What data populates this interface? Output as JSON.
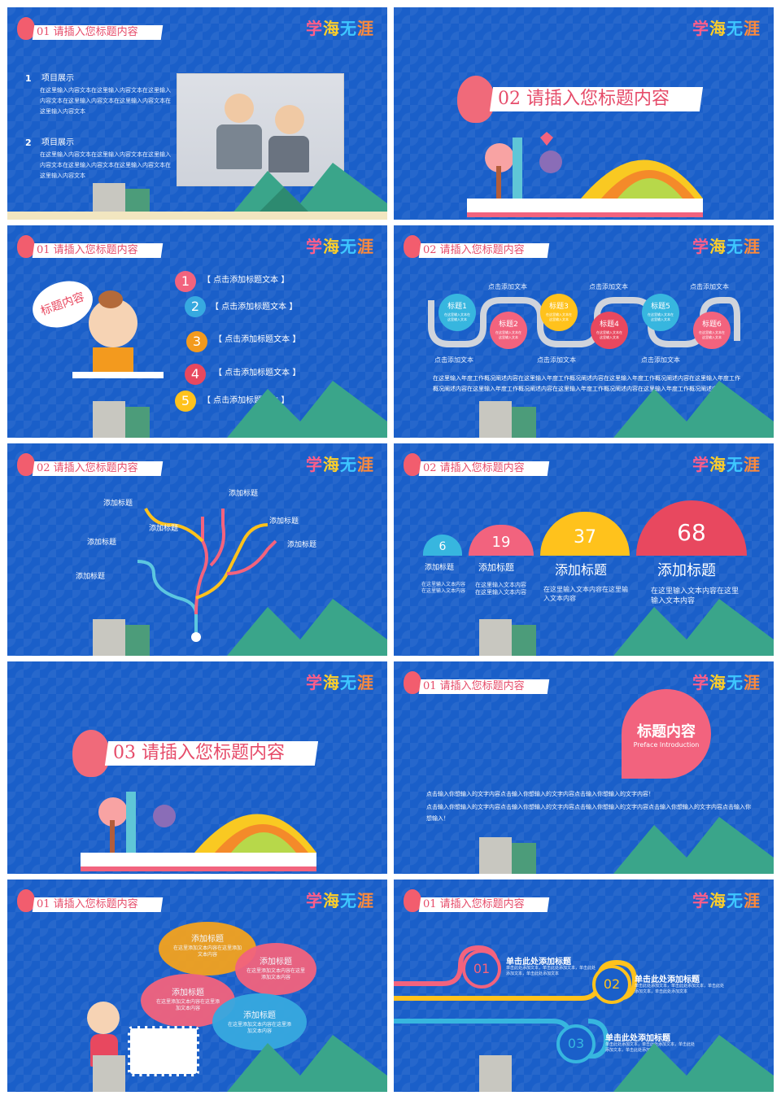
{
  "logo": {
    "chars": [
      "学",
      "海",
      "无",
      "涯"
    ]
  },
  "titles": {
    "s01": "01 请插入您标题内容",
    "s02": "02 请插入您标题内容",
    "s03": "03 请插入您标题内容"
  },
  "slide1": {
    "items": [
      {
        "num": "1",
        "heading": "项目展示",
        "body": "在这里输入内容文本在这里输入内容文本在这里输入内容文本在这里输入内容文本在这里输入内容文本在这里输入内容文本"
      },
      {
        "num": "2",
        "heading": "项目展示",
        "body": "在这里输入内容文本在这里输入内容文本在这里输入内容文本在这里输入内容文本在这里输入内容文本在这里输入内容文本"
      }
    ]
  },
  "slide3": {
    "bubble": "标题内容",
    "items": [
      {
        "num": "1",
        "label": "【 点击添加标题文本 】",
        "color": "#f2637e"
      },
      {
        "num": "2",
        "label": "【 点击添加标题文本 】",
        "color": "#37a9e0"
      },
      {
        "num": "3",
        "label": "【 点击添加标题文本 】",
        "color": "#f39a1e"
      },
      {
        "num": "4",
        "label": "【 点击添加标题文本 】",
        "color": "#e8485f"
      },
      {
        "num": "5",
        "label": "【 点击添加标题文本 】",
        "color": "#ffc21c"
      }
    ]
  },
  "slide4": {
    "top_labels": [
      "点击添加文本",
      "点击添加文本",
      "点击添加文本"
    ],
    "bottom_labels": [
      "点击添加文本",
      "点击添加文本",
      "点击添加文本"
    ],
    "nodes": [
      {
        "label": "标题1",
        "color": "#37b6df",
        "text": "在这里输入文本在这里输入文本"
      },
      {
        "label": "标题2",
        "color": "#f2637e",
        "text": "在这里输入文本在这里输入文本"
      },
      {
        "label": "标题3",
        "color": "#ffc21c",
        "text": "在这里输入文本在这里输入文本"
      },
      {
        "label": "标题4",
        "color": "#e8485f",
        "text": "在这里输入文本在这里输入文本"
      },
      {
        "label": "标题5",
        "color": "#37b6df",
        "text": "在这里输入文本在这里输入文本"
      },
      {
        "label": "标题6",
        "color": "#f2637e",
        "text": "在这里输入文本在这里输入文本"
      }
    ],
    "paragraph": "在这里输入年度工作概况阐述内容在这里输入年度工作概况阐述内容在这里输入年度工作概况阐述内容在这里输入年度工作概况阐述内容在这里输入年度工作概况阐述内容在这里输入年度工作概况阐述内容在这里输入年度工作概况阐述内容"
  },
  "slide5": {
    "labels": [
      "添加标题",
      "添加标题",
      "添加标题",
      "添加标题",
      "添加标题",
      "添加标题",
      "添加标题"
    ]
  },
  "slide6": {
    "bars": [
      {
        "value": "6",
        "title": "添加标题",
        "text": "在这里输入文本内容在这里输入文本内容",
        "color": "#37b6df"
      },
      {
        "value": "19",
        "title": "添加标题",
        "text": "在这里输入文本内容在这里输入文本内容",
        "color": "#f2637e"
      },
      {
        "value": "37",
        "title": "添加标题",
        "text": "在这里输入文本内容在这里输入文本内容",
        "color": "#ffc21c"
      },
      {
        "value": "68",
        "title": "添加标题",
        "text": "在这里输入文本内容在这里输入文本内容",
        "color": "#e8485f"
      }
    ]
  },
  "slide8": {
    "circle_title": "标题内容",
    "circle_sub": "Preface Introduction",
    "para1": "点击输入你想输入的文字内容点击输入你想输入的文字内容点击输入你想输入的文字内容！",
    "para2": "点击输入你想输入的文字内容点击输入你想输入的文字内容点击输入你想输入的文字内容点击输入你想输入的文字内容点击输入你想输入！"
  },
  "slide9": {
    "bubbles": [
      {
        "title": "添加标题",
        "text": "在这里添加文本内容在这里添加文本内容",
        "color": "#f3a21f"
      },
      {
        "title": "添加标题",
        "text": "在这里添加文本内容在这里添加文本内容",
        "color": "#f2637e"
      },
      {
        "title": "添加标题",
        "text": "在这里添加文本内容在这里添加文本内容",
        "color": "#f2637e"
      },
      {
        "title": "添加标题",
        "text": "在这里添加文本内容在这里添加文本内容",
        "color": "#37a9e0"
      }
    ]
  },
  "slide10": {
    "steps": [
      {
        "num": "01",
        "title": "单击此处添加标题",
        "text": "单击此处添加文本，单击此处添加文本，单击此处添加文本，单击此处添加文本",
        "color": "#f2637e"
      },
      {
        "num": "02",
        "title": "单击此处添加标题",
        "text": "单击此处添加文本，单击此处添加文本，单击此处添加文本，单击此处添加文本",
        "color": "#ffc21c"
      },
      {
        "num": "03",
        "title": "单击此处添加标题",
        "text": "单击此处添加文本，单击此处添加文本，单击此处添加文本，单击此处添加文本",
        "color": "#37b6df"
      }
    ]
  }
}
